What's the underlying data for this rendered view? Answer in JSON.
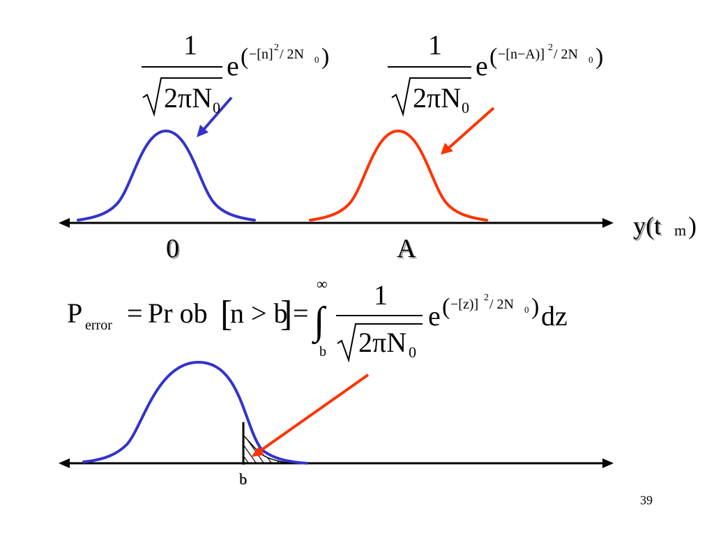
{
  "slide": {
    "page_number": "39",
    "colors": {
      "noise_curve": "#3333cc",
      "signal_curve": "#ff3300",
      "axis": "#000000"
    }
  },
  "formulas": {
    "noise_pdf": {
      "numerator": "1",
      "radicand": "2πN",
      "radicand_sub": "0",
      "base": "e",
      "exp_open": "(",
      "exp_term": "−[n]",
      "exp_power": "2",
      "exp_divisor": " / 2N",
      "exp_divisor_sub": "0",
      "exp_close": ")"
    },
    "signal_pdf": {
      "numerator": "1",
      "radicand": "2πN",
      "radicand_sub": "0",
      "base": "e",
      "exp_open": "(",
      "exp_term": "−[n−A)]",
      "exp_power": "2",
      "exp_divisor": " / 2N",
      "exp_divisor_sub": "0",
      "exp_close": ")"
    },
    "error_probability": {
      "lhs": "P",
      "lhs_sub": "error",
      "eq1": "=",
      "prob": "Pr ob",
      "lbracket": "[",
      "condition": "n > b",
      "rbracket": "]",
      "eq2": "=",
      "integral": "∫",
      "upper_limit": "∞",
      "lower_limit": "b",
      "numerator": "1",
      "radicand": "2πN",
      "radicand_sub": "0",
      "base": "e",
      "exp_open": "(",
      "exp_term": "−[z)]",
      "exp_power": "2",
      "exp_divisor": " / 2N",
      "exp_divisor_sub": "0",
      "exp_close": ")",
      "differential": "dz"
    }
  },
  "axis_labels": {
    "origin": "0",
    "signal": "A",
    "variable_main": "y(t",
    "variable_sub": "m",
    "variable_close": ")",
    "threshold": "b"
  }
}
